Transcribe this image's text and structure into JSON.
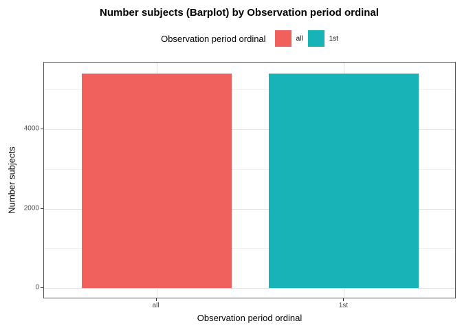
{
  "title": "Number subjects (Barplot) by Observation period ordinal",
  "legend": {
    "title": "Observation period ordinal",
    "items": [
      {
        "label": "all",
        "color": "#F0605D"
      },
      {
        "label": "1st",
        "color": "#17B3B6"
      }
    ]
  },
  "x_axis": {
    "title": "Observation period ordinal",
    "tick_labels": [
      "all",
      "1st"
    ]
  },
  "y_axis": {
    "title": "Number subjects",
    "tick_labels": [
      "0",
      "2000",
      "4000"
    ]
  },
  "chart_data": {
    "type": "bar",
    "title": "Number subjects (Barplot) by Observation period ordinal",
    "categories": [
      "all",
      "1st"
    ],
    "values": [
      5400,
      5400
    ],
    "colors": [
      "#F0605D",
      "#17B3B6"
    ],
    "xlabel": "Observation period ordinal",
    "ylabel": "Number subjects",
    "ylim": [
      0,
      5400
    ],
    "y_major_ticks": [
      0,
      2000,
      4000
    ],
    "y_minor_gridlines": [
      1000,
      3000,
      5000
    ],
    "legend_title": "Observation period ordinal",
    "legend_labels": [
      "all",
      "1st"
    ],
    "legend_position": "top",
    "grid": true,
    "bar_width_fraction": 0.8
  }
}
